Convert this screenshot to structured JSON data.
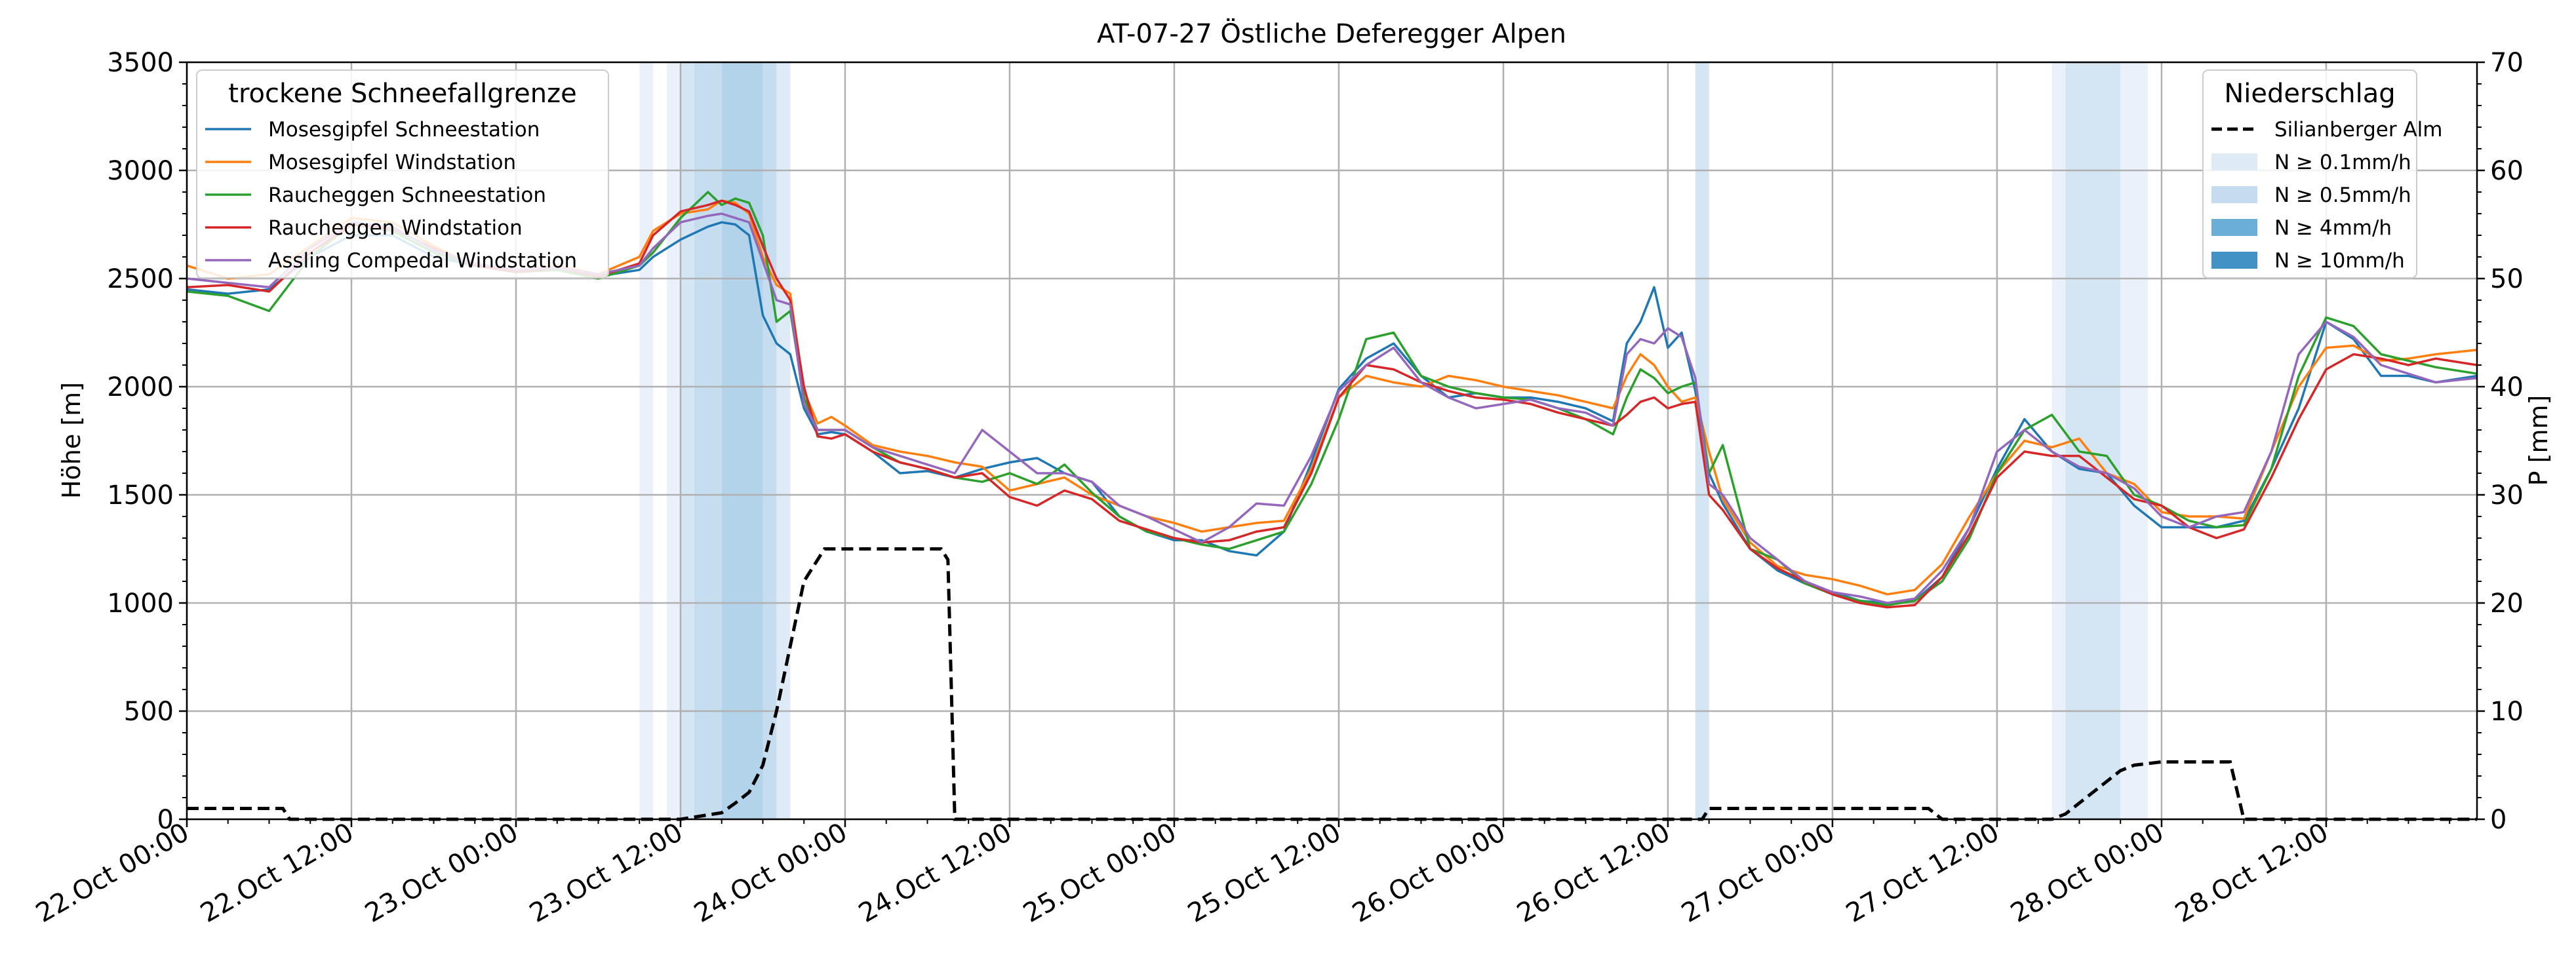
{
  "chart_data": {
    "type": "line",
    "title": "AT-07-27 Östliche Deferegger Alpen",
    "ylabel": "Höhe [m]",
    "ylabel_right": "P [mm]",
    "ylim": [
      0,
      3500
    ],
    "ylim_right": [
      0,
      70
    ],
    "y_ticks": [
      "0",
      "500",
      "1000",
      "1500",
      "2000",
      "2500",
      "3000",
      "3500"
    ],
    "y_ticks_right": [
      "0",
      "10",
      "20",
      "30",
      "40",
      "50",
      "60",
      "70"
    ],
    "x_ticks": [
      "22.Oct 00:00",
      "22.Oct 12:00",
      "23.Oct 00:00",
      "23.Oct 12:00",
      "24.Oct 00:00",
      "24.Oct 12:00",
      "25.Oct 00:00",
      "25.Oct 12:00",
      "26.Oct 00:00",
      "26.Oct 12:00",
      "27.Oct 00:00",
      "27.Oct 12:00",
      "28.Oct 00:00",
      "28.Oct 12:00"
    ],
    "x_range_hours": [
      0,
      167
    ],
    "grid": true,
    "legend_left": {
      "title": "trockene Schneefallgrenze",
      "placement": "top-left",
      "entries": [
        "Mosesgipfel Schneestation",
        "Mosesgipfel Windstation",
        "Raucheggen Schneestation",
        "Raucheggen Windstation",
        "Assling Compedal Windstation"
      ]
    },
    "legend_right": {
      "title": "Niederschlag",
      "placement": "top-right",
      "entries": [
        "Silianberger Alm",
        "N ≥ 0.1mm/h",
        "N ≥ 0.5mm/h",
        "N ≥ 4mm/h",
        "N ≥ 10mm/h"
      ]
    },
    "series": [
      {
        "name": "Mosesgipfel Schneestation",
        "color": "#1f77b4",
        "x": [
          0,
          3,
          6,
          9,
          12,
          15,
          18,
          21,
          24,
          27,
          30,
          33,
          34,
          36,
          38,
          39,
          40,
          41,
          42,
          43,
          44,
          45,
          46,
          47,
          48,
          50,
          52,
          54,
          56,
          58,
          60,
          62,
          64,
          66,
          68,
          70,
          72,
          74,
          76,
          78,
          80,
          82,
          84,
          86,
          88,
          90,
          92,
          94,
          96,
          98,
          100,
          102,
          104,
          105,
          106,
          107,
          108,
          109,
          110,
          111,
          112,
          114,
          116,
          118,
          120,
          122,
          124,
          126,
          128,
          130,
          132,
          134,
          136,
          138,
          140,
          142,
          144,
          146,
          148,
          150,
          152,
          154,
          156,
          158,
          160,
          162,
          164,
          167
        ],
        "y": [
          2450,
          2430,
          2450,
          2600,
          2700,
          2700,
          2600,
          2560,
          2530,
          2540,
          2510,
          2540,
          2600,
          2680,
          2740,
          2760,
          2750,
          2700,
          2330,
          2200,
          2150,
          1900,
          1780,
          1790,
          1780,
          1700,
          1600,
          1610,
          1580,
          1620,
          1650,
          1670,
          1600,
          1560,
          1400,
          1330,
          1290,
          1290,
          1240,
          1220,
          1330,
          1650,
          1990,
          2130,
          2200,
          2050,
          1950,
          1970,
          1950,
          1950,
          1930,
          1900,
          1840,
          2200,
          2300,
          2460,
          2180,
          2250,
          1980,
          1600,
          1460,
          1250,
          1150,
          1090,
          1050,
          1010,
          1000,
          1010,
          1120,
          1350,
          1620,
          1850,
          1700,
          1620,
          1600,
          1450,
          1350,
          1350,
          1350,
          1380,
          1620,
          1900,
          2300,
          2220,
          2050,
          2050,
          2020,
          2050
        ]
      },
      {
        "name": "Mosesgipfel Windstation",
        "color": "#ff7f0e",
        "x": [
          0,
          3,
          6,
          9,
          12,
          15,
          18,
          21,
          24,
          27,
          30,
          33,
          34,
          36,
          38,
          39,
          40,
          41,
          42,
          43,
          44,
          45,
          46,
          47,
          48,
          50,
          52,
          54,
          56,
          58,
          60,
          62,
          64,
          66,
          68,
          70,
          72,
          74,
          76,
          78,
          80,
          82,
          84,
          86,
          88,
          90,
          92,
          94,
          96,
          98,
          100,
          102,
          104,
          105,
          106,
          107,
          108,
          109,
          110,
          111,
          112,
          114,
          116,
          118,
          120,
          122,
          124,
          126,
          128,
          130,
          132,
          134,
          136,
          138,
          140,
          142,
          144,
          146,
          148,
          150,
          152,
          154,
          156,
          158,
          160,
          162,
          164,
          167
        ],
        "y": [
          2560,
          2500,
          2520,
          2650,
          2780,
          2760,
          2650,
          2560,
          2540,
          2560,
          2520,
          2600,
          2720,
          2800,
          2820,
          2860,
          2850,
          2800,
          2600,
          2470,
          2430,
          1980,
          1830,
          1860,
          1820,
          1730,
          1700,
          1680,
          1650,
          1630,
          1520,
          1550,
          1580,
          1500,
          1450,
          1400,
          1370,
          1330,
          1350,
          1370,
          1380,
          1620,
          1950,
          2050,
          2020,
          2000,
          2050,
          2030,
          2000,
          1980,
          1960,
          1930,
          1900,
          2050,
          2150,
          2100,
          2000,
          1930,
          1950,
          1700,
          1480,
          1280,
          1170,
          1130,
          1110,
          1080,
          1040,
          1060,
          1180,
          1400,
          1600,
          1750,
          1720,
          1760,
          1600,
          1550,
          1420,
          1400,
          1400,
          1390,
          1700,
          2000,
          2180,
          2190,
          2120,
          2130,
          2150,
          2170
        ]
      },
      {
        "name": "Raucheggen Schneestation",
        "color": "#2ca02c",
        "x": [
          0,
          3,
          6,
          9,
          12,
          15,
          18,
          21,
          24,
          27,
          30,
          33,
          34,
          36,
          38,
          39,
          40,
          41,
          42,
          43,
          44,
          45,
          46,
          47,
          48,
          50,
          52,
          54,
          56,
          58,
          60,
          62,
          64,
          66,
          68,
          70,
          72,
          74,
          76,
          78,
          80,
          82,
          84,
          86,
          88,
          90,
          92,
          94,
          96,
          98,
          100,
          102,
          104,
          105,
          106,
          107,
          108,
          109,
          110,
          111,
          112,
          114,
          116,
          118,
          120,
          122,
          124,
          126,
          128,
          130,
          132,
          134,
          136,
          138,
          140,
          142,
          144,
          146,
          148,
          150,
          152,
          154,
          156,
          158,
          160,
          162,
          164,
          167
        ],
        "y": [
          2440,
          2420,
          2350,
          2600,
          2750,
          2720,
          2620,
          2560,
          2530,
          2540,
          2500,
          2560,
          2620,
          2780,
          2900,
          2840,
          2870,
          2850,
          2700,
          2300,
          2350,
          1950,
          1800,
          1800,
          1800,
          1720,
          1650,
          1620,
          1580,
          1560,
          1600,
          1550,
          1640,
          1510,
          1400,
          1330,
          1300,
          1270,
          1250,
          1290,
          1330,
          1550,
          1850,
          2220,
          2250,
          2050,
          2000,
          1970,
          1950,
          1940,
          1900,
          1850,
          1780,
          1950,
          2080,
          2040,
          1970,
          2000,
          2020,
          1600,
          1730,
          1250,
          1200,
          1090,
          1040,
          1010,
          990,
          1010,
          1100,
          1300,
          1600,
          1800,
          1870,
          1700,
          1680,
          1500,
          1450,
          1380,
          1350,
          1360,
          1620,
          2050,
          2320,
          2280,
          2150,
          2120,
          2090,
          2060
        ]
      },
      {
        "name": "Raucheggen Windstation",
        "color": "#d62728",
        "x": [
          0,
          3,
          6,
          9,
          12,
          15,
          18,
          21,
          24,
          27,
          30,
          33,
          34,
          36,
          38,
          39,
          40,
          41,
          42,
          43,
          44,
          45,
          46,
          47,
          48,
          50,
          52,
          54,
          56,
          58,
          60,
          62,
          64,
          66,
          68,
          70,
          72,
          74,
          76,
          78,
          80,
          82,
          84,
          86,
          88,
          90,
          92,
          94,
          96,
          98,
          100,
          102,
          104,
          105,
          106,
          107,
          108,
          109,
          110,
          111,
          112,
          114,
          116,
          118,
          120,
          122,
          124,
          126,
          128,
          130,
          132,
          134,
          136,
          138,
          140,
          142,
          144,
          146,
          148,
          150,
          152,
          154,
          156,
          158,
          160,
          162,
          164,
          167
        ],
        "y": [
          2460,
          2470,
          2440,
          2620,
          2750,
          2730,
          2640,
          2560,
          2530,
          2550,
          2510,
          2570,
          2700,
          2810,
          2840,
          2860,
          2840,
          2810,
          2650,
          2500,
          2400,
          2000,
          1770,
          1760,
          1780,
          1700,
          1650,
          1620,
          1580,
          1600,
          1490,
          1450,
          1520,
          1480,
          1380,
          1340,
          1300,
          1280,
          1290,
          1330,
          1350,
          1600,
          1950,
          2100,
          2080,
          2020,
          1980,
          1950,
          1940,
          1920,
          1880,
          1850,
          1820,
          1870,
          1930,
          1950,
          1900,
          1920,
          1930,
          1500,
          1430,
          1250,
          1160,
          1100,
          1040,
          1000,
          980,
          990,
          1120,
          1320,
          1580,
          1700,
          1680,
          1680,
          1580,
          1480,
          1450,
          1350,
          1300,
          1340,
          1580,
          1850,
          2080,
          2150,
          2130,
          2100,
          2130,
          2100
        ]
      },
      {
        "name": "Assling Compedal Windstation",
        "color": "#9467bd",
        "x": [
          0,
          3,
          6,
          9,
          12,
          15,
          18,
          21,
          24,
          27,
          30,
          33,
          34,
          36,
          38,
          39,
          40,
          41,
          42,
          43,
          44,
          45,
          46,
          47,
          48,
          50,
          52,
          54,
          56,
          58,
          60,
          62,
          64,
          66,
          68,
          70,
          72,
          74,
          76,
          78,
          80,
          82,
          84,
          86,
          88,
          90,
          92,
          94,
          96,
          98,
          100,
          102,
          104,
          105,
          106,
          107,
          108,
          109,
          110,
          111,
          112,
          114,
          116,
          118,
          120,
          122,
          124,
          126,
          128,
          130,
          132,
          134,
          136,
          138,
          140,
          142,
          144,
          146,
          148,
          150,
          152,
          154,
          156,
          158,
          160,
          162,
          164,
          167
        ],
        "y": [
          2500,
          2480,
          2460,
          2640,
          2760,
          2740,
          2630,
          2570,
          2540,
          2550,
          2520,
          2560,
          2640,
          2760,
          2790,
          2800,
          2780,
          2760,
          2580,
          2400,
          2380,
          1920,
          1800,
          1800,
          1800,
          1720,
          1680,
          1640,
          1600,
          1800,
          1700,
          1600,
          1600,
          1560,
          1450,
          1400,
          1340,
          1280,
          1350,
          1460,
          1450,
          1680,
          1980,
          2100,
          2180,
          2020,
          1950,
          1900,
          1920,
          1940,
          1900,
          1880,
          1820,
          2150,
          2220,
          2200,
          2270,
          2230,
          2040,
          1550,
          1500,
          1300,
          1200,
          1100,
          1050,
          1030,
          1000,
          1020,
          1150,
          1350,
          1700,
          1800,
          1700,
          1630,
          1600,
          1530,
          1400,
          1350,
          1400,
          1420,
          1700,
          2150,
          2300,
          2230,
          2100,
          2060,
          2020,
          2040
        ]
      }
    ],
    "precip_series": {
      "name": "Silianberger Alm",
      "style": "dashed",
      "color": "#000000",
      "x": [
        0,
        7,
        7.5,
        33,
        36,
        37.5,
        39,
        40,
        41,
        42,
        43,
        44,
        45,
        46,
        46.5,
        52,
        55,
        55.5,
        56,
        110,
        110.5,
        111,
        127,
        127.5,
        128,
        136,
        137,
        138,
        139,
        140,
        141,
        142,
        144,
        149,
        150,
        167
      ],
      "y": [
        1,
        1,
        0,
        0,
        0,
        0.3,
        0.6,
        1.5,
        2.5,
        5,
        10,
        16,
        22,
        24,
        25,
        25,
        25,
        24,
        0,
        0,
        0,
        1,
        1,
        0.5,
        0,
        0,
        0.5,
        1.5,
        2.5,
        3.5,
        4.5,
        5,
        5.3,
        5.3,
        0,
        0
      ]
    },
    "precip_bands": [
      {
        "level": "N ≥ 0.1mm/h",
        "color": "#eaf1fa",
        "x0": 33,
        "x1": 34
      },
      {
        "level": "N ≥ 0.1mm/h",
        "color": "#eaf1fa",
        "x0": 35,
        "x1": 36
      },
      {
        "level": "N ≥ 0.5mm/h",
        "color": "#d4e5f4",
        "x0": 36,
        "x1": 37
      },
      {
        "level": "N ≥ 0.5mm/h",
        "color": "#c6dcef",
        "x0": 37,
        "x1": 39
      },
      {
        "level": "N ≥ 4mm/h",
        "color": "#b3d3ea",
        "x0": 39,
        "x1": 42
      },
      {
        "level": "N ≥ 0.5mm/h",
        "color": "#c6dcef",
        "x0": 42,
        "x1": 43
      },
      {
        "level": "N ≥ 0.1mm/h",
        "color": "#deebf7",
        "x0": 43,
        "x1": 44
      },
      {
        "level": "N ≥ 0.5mm/h",
        "color": "#d4e5f4",
        "x0": 110,
        "x1": 111
      },
      {
        "level": "N ≥ 0.1mm/h",
        "color": "#eaf1fa",
        "x0": 136,
        "x1": 137
      },
      {
        "level": "N ≥ 0.5mm/h",
        "color": "#d4e5f4",
        "x0": 137,
        "x1": 141
      },
      {
        "level": "N ≥ 0.1mm/h",
        "color": "#eaf1fa",
        "x0": 141,
        "x1": 143
      }
    ],
    "legend_swatch_colors": [
      "#deebf7",
      "#c6dbef",
      "#6baed6",
      "#4292c6"
    ]
  }
}
